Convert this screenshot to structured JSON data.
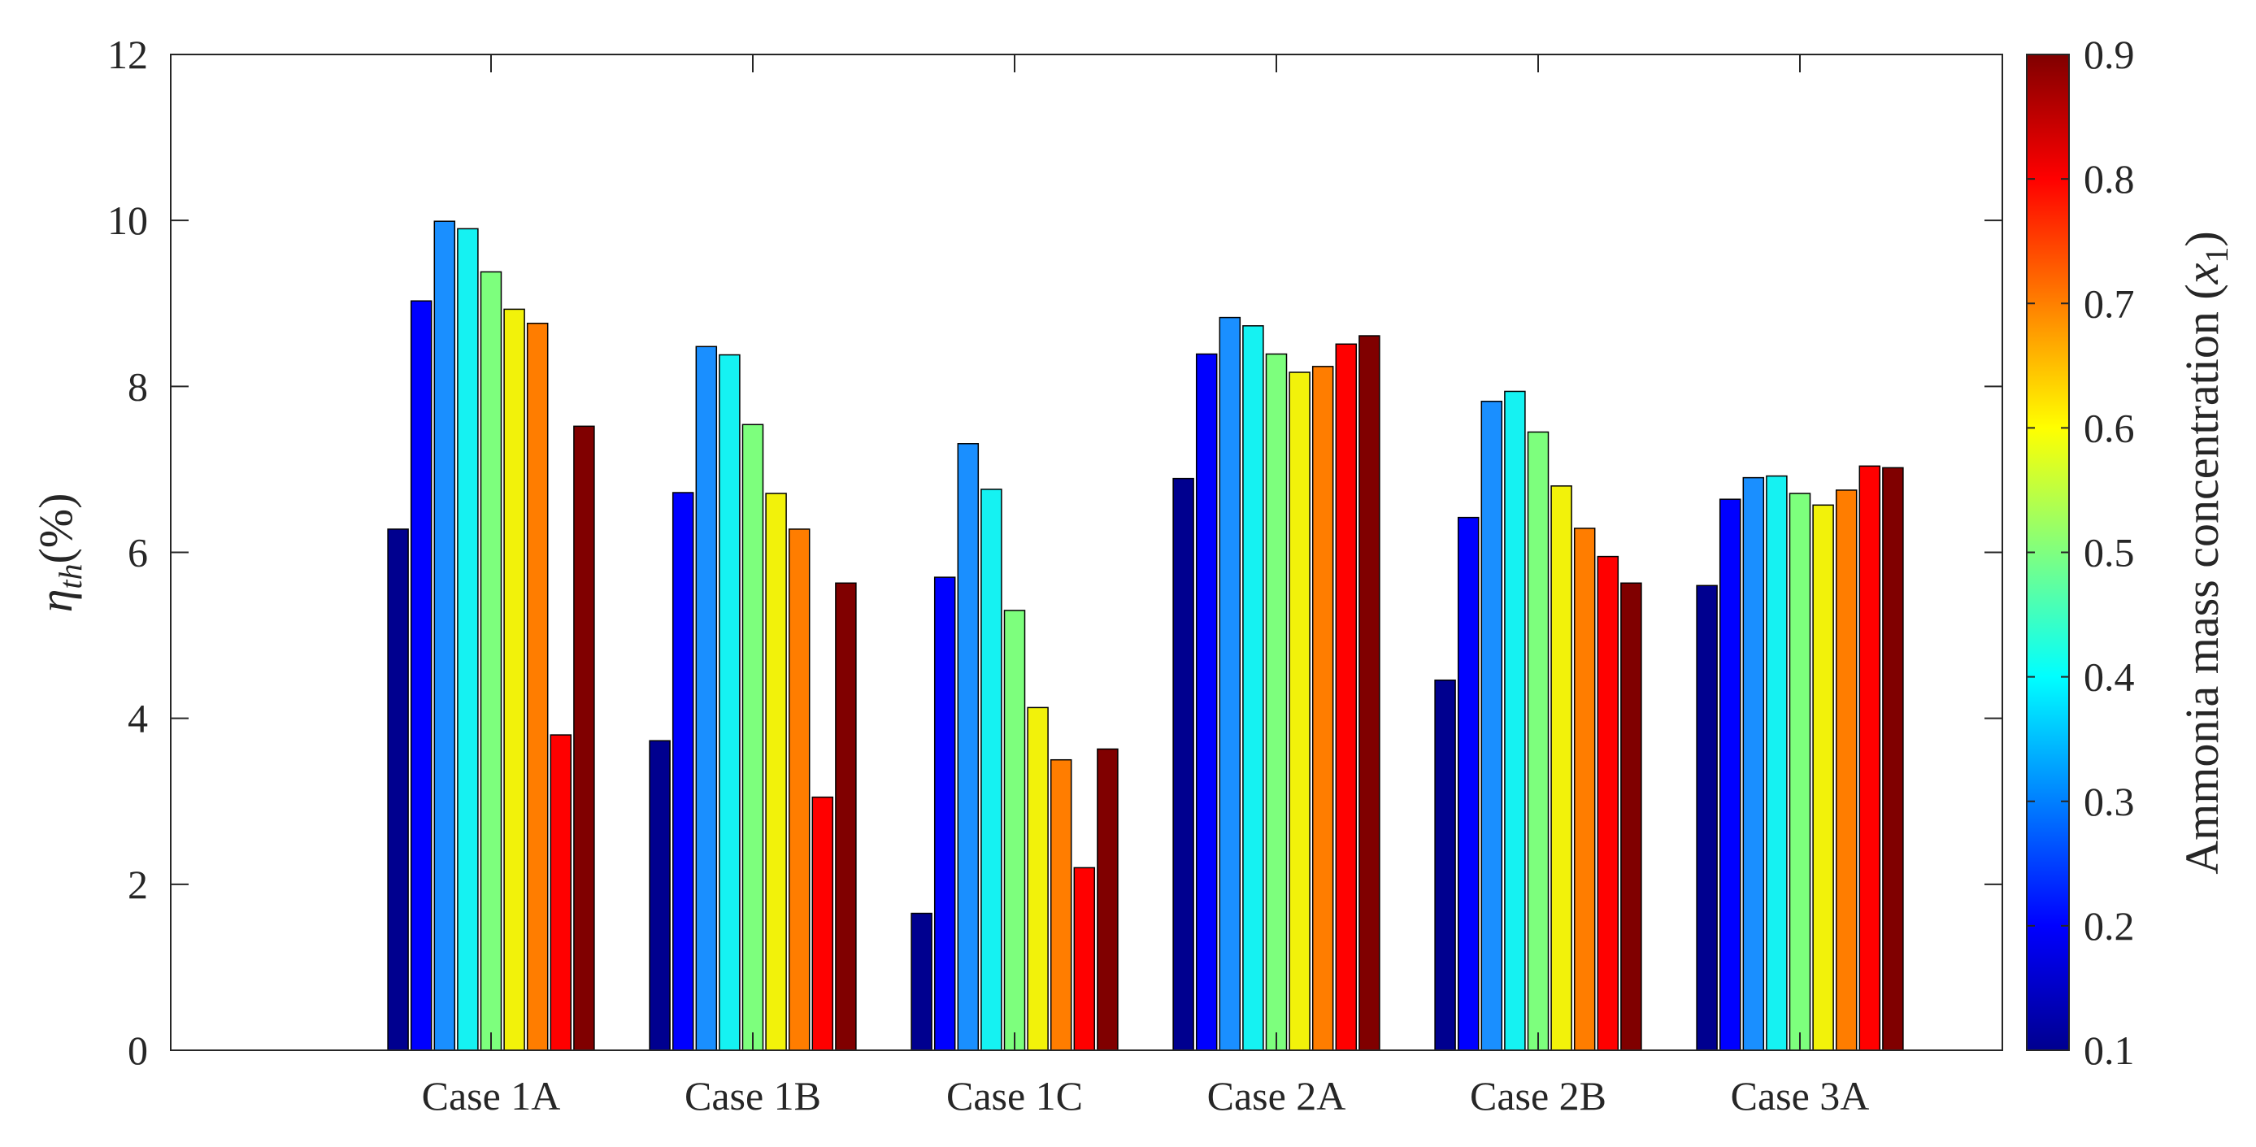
{
  "chart_data": {
    "type": "bar",
    "title": "",
    "xlabel": "",
    "ylabel": "η_th(%)",
    "ylabel_parts": {
      "symbol": "η",
      "subscript": "th",
      "unit": "(%)"
    },
    "ylim": [
      0,
      12
    ],
    "yticks": [
      0,
      2,
      4,
      6,
      8,
      10,
      12
    ],
    "categories": [
      "Case 1A",
      "Case 1B",
      "Case 1C",
      "Case 2A",
      "Case 2B",
      "Case 3A"
    ],
    "series": [
      {
        "name": "x1 = 0.1",
        "color": "#00008f",
        "values": [
          6.28,
          3.73,
          1.65,
          6.89,
          4.46,
          5.6
        ]
      },
      {
        "name": "x1 = 0.2",
        "color": "#0000ff",
        "values": [
          9.03,
          6.72,
          5.7,
          8.39,
          6.42,
          6.64
        ]
      },
      {
        "name": "x1 = 0.3",
        "color": "#1a8fff",
        "values": [
          9.99,
          8.48,
          7.31,
          8.83,
          7.82,
          6.9
        ]
      },
      {
        "name": "x1 = 0.4",
        "color": "#15f2f2",
        "values": [
          9.9,
          8.38,
          6.76,
          8.73,
          7.94,
          6.92
        ]
      },
      {
        "name": "x1 = 0.5",
        "color": "#7dff7d",
        "values": [
          9.38,
          7.54,
          5.3,
          8.39,
          7.45,
          6.71
        ]
      },
      {
        "name": "x1 = 0.6",
        "color": "#f2f20a",
        "values": [
          8.93,
          6.71,
          4.13,
          8.17,
          6.8,
          6.57
        ]
      },
      {
        "name": "x1 = 0.7",
        "color": "#ff7d00",
        "values": [
          8.76,
          6.28,
          3.5,
          8.24,
          6.29,
          6.75
        ]
      },
      {
        "name": "x1 = 0.8",
        "color": "#ff0000",
        "values": [
          3.8,
          3.05,
          2.2,
          8.51,
          5.95,
          7.04
        ]
      },
      {
        "name": "x1 = 0.9",
        "color": "#800000",
        "values": [
          7.52,
          5.63,
          3.63,
          8.61,
          5.63,
          7.02
        ]
      }
    ],
    "grid": false,
    "legend": "none",
    "colorbar": {
      "label": "Ammonia mass concentration (x1)",
      "label_parts": {
        "text": "Ammonia mass concentration (",
        "var": "x",
        "subscript": "1",
        "close": ")"
      },
      "range": [
        0.1,
        0.9
      ],
      "ticks": [
        "0.1",
        "0.2",
        "0.3",
        "0.4",
        "0.5",
        "0.6",
        "0.7",
        "0.8",
        "0.9"
      ],
      "colormap": "jet",
      "placement": "right"
    }
  }
}
